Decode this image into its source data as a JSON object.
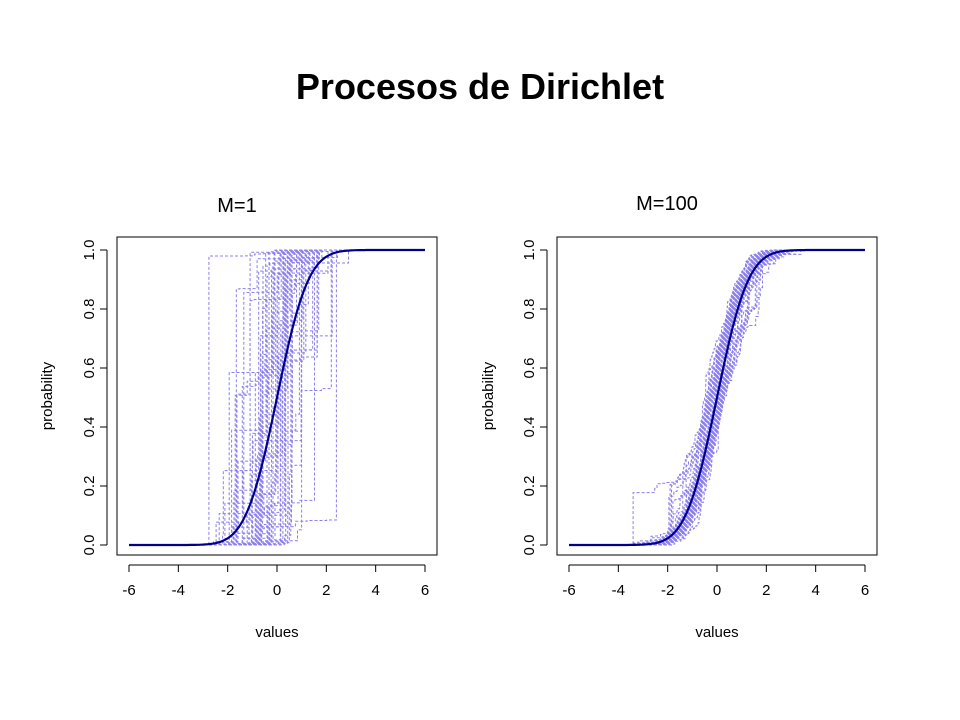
{
  "title": "Procesos de Dirichlet",
  "colors": {
    "sample_paths": "#8b7fef",
    "base_cdf": "#00008b",
    "axis": "#000000"
  },
  "chart_data": [
    {
      "type": "line",
      "title": "M=1",
      "xlabel": "values",
      "ylabel": "probability",
      "xlim": [
        -6,
        6
      ],
      "ylim": [
        0,
        1
      ],
      "xticks": [
        "-6",
        "-4",
        "-2",
        "0",
        "2",
        "4",
        "6"
      ],
      "yticks": [
        "0.0",
        "0.2",
        "0.4",
        "0.6",
        "0.8",
        "1.0"
      ],
      "grid": false,
      "concentration_M": 1,
      "base_cdf": {
        "x": [
          -6,
          -5,
          -4,
          -3,
          -2.5,
          -2,
          -1.5,
          -1,
          -0.5,
          0,
          0.5,
          1,
          1.5,
          2,
          2.5,
          3,
          4,
          5,
          6
        ],
        "y": [
          0,
          0,
          3e-05,
          0.0013,
          0.0062,
          0.0228,
          0.0668,
          0.1587,
          0.3085,
          0.5,
          0.6915,
          0.8413,
          0.9332,
          0.9772,
          0.9938,
          0.9987,
          1,
          1,
          1
        ]
      },
      "sample_paths": {
        "count": 50,
        "style": "dashed step functions",
        "x_range": [
          -3.3,
          2.8
        ],
        "typical_support": [
          -2.5,
          2.5
        ]
      }
    },
    {
      "type": "line",
      "title": "M=100",
      "xlabel": "values",
      "ylabel": "probability",
      "xlim": [
        -6,
        6
      ],
      "ylim": [
        0,
        1
      ],
      "xticks": [
        "-6",
        "-4",
        "-2",
        "0",
        "2",
        "4",
        "6"
      ],
      "yticks": [
        "0.0",
        "0.2",
        "0.4",
        "0.6",
        "0.8",
        "1.0"
      ],
      "grid": false,
      "concentration_M": 100,
      "base_cdf": {
        "x": [
          -6,
          -5,
          -4,
          -3,
          -2.5,
          -2,
          -1.5,
          -1,
          -0.5,
          0,
          0.5,
          1,
          1.5,
          2,
          2.5,
          3,
          4,
          5,
          6
        ],
        "y": [
          0,
          0,
          3e-05,
          0.0013,
          0.0062,
          0.0228,
          0.0668,
          0.1587,
          0.3085,
          0.5,
          0.6915,
          0.8413,
          0.9332,
          0.9772,
          0.9938,
          0.9987,
          1,
          1,
          1
        ]
      },
      "sample_paths": {
        "count": 50,
        "style": "dashed step functions",
        "x_range": [
          -3.5,
          3.5
        ],
        "typical_support": [
          -3,
          3
        ]
      }
    }
  ]
}
